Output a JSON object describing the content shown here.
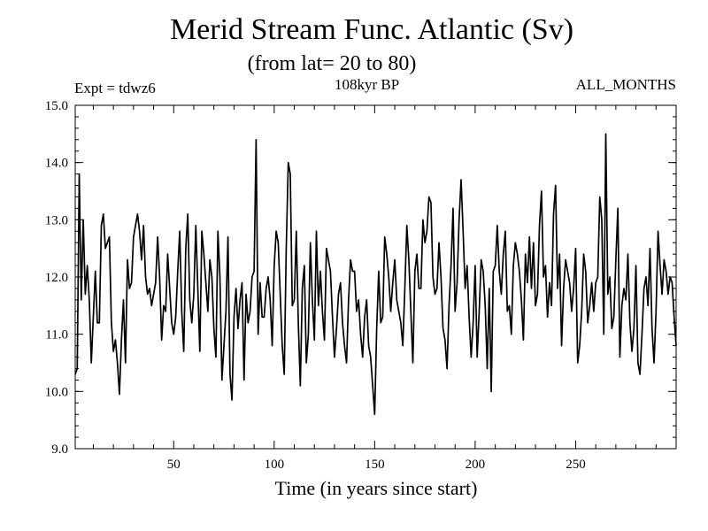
{
  "chart_data": {
    "type": "line",
    "title": "Merid Stream Func. Atlantic (Sv)",
    "subtitle": "(from lat= 20 to 80)",
    "annotations": {
      "left": "Expt = tdwz6",
      "center": "108kyr BP",
      "right": "ALL_MONTHS"
    },
    "xlabel": "Time (in years since start)",
    "ylabel": "",
    "xlim": [
      1,
      300
    ],
    "ylim": [
      9.0,
      15.0
    ],
    "x_ticks": [
      50,
      100,
      150,
      200,
      250
    ],
    "y_ticks": [
      9.0,
      10.0,
      11.0,
      12.0,
      13.0,
      14.0,
      15.0
    ],
    "y_tick_labels": [
      "9.0",
      "10.0",
      "11.0",
      "12.0",
      "13.0",
      "14.0",
      "15.0"
    ],
    "grid": false,
    "x_start": 1,
    "series": [
      {
        "name": "",
        "color": "#000000",
        "values": [
          10.3,
          10.4,
          13.8,
          11.6,
          13.0,
          11.7,
          12.2,
          11.6,
          10.5,
          11.3,
          12.1,
          11.2,
          11.2,
          12.9,
          13.1,
          12.5,
          12.6,
          12.7,
          11.2,
          10.7,
          10.9,
          10.5,
          9.95,
          10.9,
          11.6,
          10.5,
          12.3,
          11.8,
          11.9,
          12.7,
          12.9,
          13.1,
          12.8,
          12.3,
          12.9,
          12.0,
          11.7,
          11.8,
          11.5,
          11.7,
          11.9,
          12.7,
          12.0,
          10.9,
          11.5,
          11.4,
          12.4,
          11.8,
          11.2,
          11.0,
          11.3,
          12.1,
          12.8,
          11.4,
          10.7,
          12.5,
          13.1,
          11.6,
          11.2,
          11.7,
          12.9,
          11.8,
          10.7,
          12.8,
          12.4,
          11.9,
          11.4,
          12.3,
          12.0,
          11.1,
          10.6,
          12.8,
          12.0,
          10.2,
          10.8,
          11.4,
          12.7,
          10.3,
          9.85,
          11.3,
          11.8,
          11.1,
          11.6,
          11.9,
          10.2,
          11.7,
          11.2,
          11.4,
          12.0,
          12.1,
          14.4,
          11.0,
          11.9,
          11.3,
          11.3,
          11.8,
          12.0,
          11.6,
          10.8,
          12.2,
          12.8,
          12.6,
          11.7,
          10.8,
          10.3,
          12.5,
          14.0,
          13.8,
          11.5,
          11.6,
          12.8,
          11.2,
          10.1,
          11.8,
          12.2,
          10.5,
          11.0,
          12.6,
          11.6,
          10.9,
          12.8,
          11.5,
          12.1,
          11.4,
          10.9,
          12.5,
          12.3,
          12.1,
          11.3,
          10.6,
          11.1,
          11.7,
          11.9,
          11.2,
          10.8,
          10.5,
          11.6,
          12.3,
          12.1,
          12.1,
          11.4,
          11.6,
          11.0,
          10.6,
          11.3,
          11.6,
          10.8,
          10.6,
          10.1,
          9.6,
          11.1,
          12.1,
          11.2,
          11.3,
          12.7,
          12.4,
          12.0,
          11.4,
          11.9,
          12.3,
          11.6,
          11.4,
          11.2,
          10.8,
          11.8,
          12.9,
          12.3,
          11.4,
          10.5,
          12.1,
          12.4,
          11.8,
          11.8,
          13.0,
          12.6,
          12.8,
          13.4,
          13.3,
          12.0,
          11.7,
          11.8,
          12.6,
          12.0,
          11.1,
          10.9,
          10.4,
          11.5,
          12.2,
          13.2,
          11.4,
          11.9,
          13.0,
          13.7,
          12.8,
          11.8,
          12.2,
          11.3,
          10.6,
          11.2,
          12.2,
          10.6,
          11.4,
          12.3,
          12.1,
          11.5,
          10.4,
          11.8,
          10.0,
          12.1,
          12.2,
          12.9,
          12.1,
          11.7,
          12.4,
          12.8,
          11.4,
          11.5,
          11.0,
          12.2,
          12.6,
          12.4,
          12.1,
          11.6,
          10.9,
          12.4,
          11.9,
          12.7,
          11.8,
          12.6,
          11.5,
          11.7,
          12.9,
          13.5,
          12.0,
          12.2,
          11.3,
          11.9,
          11.5,
          13.1,
          13.6,
          11.8,
          12.4,
          10.8,
          11.8,
          12.3,
          12.1,
          11.9,
          11.4,
          11.8,
          12.5,
          10.5,
          10.8,
          11.4,
          12.4,
          12.1,
          11.2,
          11.5,
          11.9,
          11.4,
          11.9,
          12.0,
          13.4,
          13.0,
          11.0,
          14.5,
          11.7,
          12.0,
          11.1,
          11.3,
          12.3,
          13.2,
          10.6,
          11.5,
          11.8,
          11.6,
          12.4,
          11.2,
          10.7,
          11.1,
          12.2,
          10.5,
          10.3,
          11.0,
          11.8,
          12.0,
          11.5,
          12.5,
          11.1,
          10.5,
          11.4,
          12.8,
          12.2,
          11.7,
          12.3,
          12.1,
          11.7,
          12.0,
          11.9,
          11.3,
          10.8
        ]
      }
    ]
  }
}
